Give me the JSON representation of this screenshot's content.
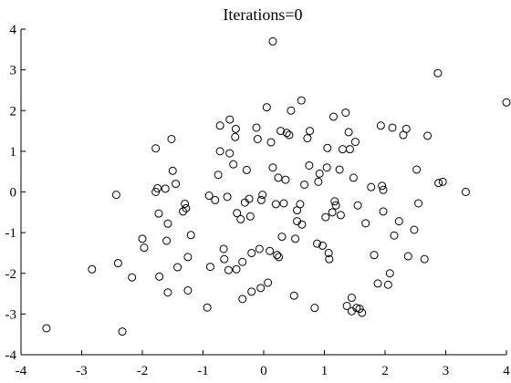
{
  "chart_data": {
    "type": "scatter",
    "title": "Iterations=0",
    "xlabel": "",
    "ylabel": "",
    "xlim": [
      -4,
      4
    ],
    "ylim": [
      -4,
      4
    ],
    "xticks": [
      -4,
      -3,
      -2,
      -1,
      0,
      1,
      2,
      3,
      4
    ],
    "yticks": [
      -4,
      -3,
      -2,
      -1,
      0,
      1,
      2,
      3,
      4
    ],
    "xtick_labels": [
      "-4",
      "-3",
      "-2",
      "-1",
      "0",
      "1",
      "2",
      "3",
      "4"
    ],
    "ytick_labels": [
      "-4",
      "-3",
      "-2",
      "-1",
      "0",
      "1",
      "2",
      "3",
      "4"
    ],
    "grid": false,
    "marker": "open-circle",
    "color": "#000000",
    "points": [
      [
        -3.58,
        -3.35
      ],
      [
        -2.33,
        -3.43
      ],
      [
        -2.83,
        -1.9
      ],
      [
        -2.4,
        -1.75
      ],
      [
        -2.43,
        -0.07
      ],
      [
        -2.17,
        -2.1
      ],
      [
        -2.0,
        -1.15
      ],
      [
        -1.97,
        -1.37
      ],
      [
        -1.78,
        1.07
      ],
      [
        -1.78,
        0.0
      ],
      [
        -1.75,
        0.09
      ],
      [
        -1.73,
        -0.53
      ],
      [
        -1.72,
        -2.08
      ],
      [
        -1.62,
        0.08
      ],
      [
        -1.6,
        -1.2
      ],
      [
        -1.58,
        -0.78
      ],
      [
        -1.58,
        -2.47
      ],
      [
        -1.52,
        1.3
      ],
      [
        -1.5,
        0.52
      ],
      [
        -1.45,
        0.2
      ],
      [
        -1.42,
        -1.85
      ],
      [
        -1.33,
        -0.48
      ],
      [
        -1.3,
        -0.29
      ],
      [
        -1.28,
        -0.4
      ],
      [
        -1.25,
        -1.6
      ],
      [
        -1.25,
        -2.42
      ],
      [
        -1.2,
        -1.06
      ],
      [
        -0.93,
        -2.84
      ],
      [
        -0.9,
        -0.09
      ],
      [
        -0.88,
        -1.84
      ],
      [
        -0.8,
        -0.2
      ],
      [
        -0.75,
        0.42
      ],
      [
        -0.72,
        1.63
      ],
      [
        -0.72,
        1.0
      ],
      [
        -0.66,
        -1.4
      ],
      [
        -0.65,
        -1.65
      ],
      [
        -0.6,
        -0.12
      ],
      [
        -0.58,
        -1.92
      ],
      [
        -0.56,
        0.95
      ],
      [
        -0.56,
        1.78
      ],
      [
        -0.5,
        0.68
      ],
      [
        -0.47,
        1.35
      ],
      [
        -0.46,
        1.55
      ],
      [
        -0.45,
        -1.9
      ],
      [
        -0.44,
        -0.52
      ],
      [
        -0.38,
        -0.67
      ],
      [
        -0.35,
        -1.72
      ],
      [
        -0.35,
        -2.63
      ],
      [
        -0.31,
        -0.26
      ],
      [
        -0.28,
        0.54
      ],
      [
        -0.24,
        -0.17
      ],
      [
        -0.22,
        -0.6
      ],
      [
        -0.2,
        -2.45
      ],
      [
        -0.2,
        -1.5
      ],
      [
        -0.12,
        1.58
      ],
      [
        -0.1,
        1.3
      ],
      [
        -0.07,
        -1.4
      ],
      [
        -0.05,
        -2.36
      ],
      [
        -0.04,
        -0.2
      ],
      [
        -0.02,
        -0.07
      ],
      [
        0.05,
        2.08
      ],
      [
        0.07,
        -2.23
      ],
      [
        0.1,
        -1.45
      ],
      [
        0.12,
        1.22
      ],
      [
        0.15,
        3.7
      ],
      [
        0.15,
        0.6
      ],
      [
        0.2,
        -0.3
      ],
      [
        0.22,
        -1.55
      ],
      [
        0.24,
        0.35
      ],
      [
        0.25,
        -1.6
      ],
      [
        0.28,
        1.5
      ],
      [
        0.3,
        -1.1
      ],
      [
        0.33,
        -0.28
      ],
      [
        0.36,
        0.3
      ],
      [
        0.38,
        1.45
      ],
      [
        0.42,
        1.4
      ],
      [
        0.45,
        2.0
      ],
      [
        0.5,
        -2.55
      ],
      [
        0.52,
        -1.15
      ],
      [
        0.55,
        -0.45
      ],
      [
        0.55,
        -0.72
      ],
      [
        0.6,
        -0.3
      ],
      [
        0.62,
        2.25
      ],
      [
        0.63,
        -0.8
      ],
      [
        0.67,
        0.18
      ],
      [
        0.72,
        1.32
      ],
      [
        0.75,
        0.65
      ],
      [
        0.76,
        1.5
      ],
      [
        0.84,
        -2.85
      ],
      [
        0.88,
        -1.27
      ],
      [
        0.9,
        0.25
      ],
      [
        0.92,
        0.45
      ],
      [
        0.97,
        -1.32
      ],
      [
        1.02,
        -0.62
      ],
      [
        1.04,
        0.6
      ],
      [
        1.05,
        1.08
      ],
      [
        1.07,
        -1.5
      ],
      [
        1.08,
        -1.65
      ],
      [
        1.13,
        -0.5
      ],
      [
        1.15,
        1.85
      ],
      [
        1.17,
        -0.23
      ],
      [
        1.19,
        -0.33
      ],
      [
        1.25,
        0.55
      ],
      [
        1.27,
        -0.57
      ],
      [
        1.3,
        1.05
      ],
      [
        1.35,
        1.95
      ],
      [
        1.37,
        -2.8
      ],
      [
        1.4,
        1.47
      ],
      [
        1.42,
        1.05
      ],
      [
        1.45,
        -2.93
      ],
      [
        1.45,
        -2.6
      ],
      [
        1.48,
        0.35
      ],
      [
        1.51,
        1.23
      ],
      [
        1.53,
        -2.85
      ],
      [
        1.55,
        -0.33
      ],
      [
        1.58,
        -2.87
      ],
      [
        1.62,
        -2.97
      ],
      [
        1.68,
        -0.77
      ],
      [
        1.77,
        0.12
      ],
      [
        1.82,
        -1.55
      ],
      [
        1.88,
        -2.25
      ],
      [
        1.93,
        1.63
      ],
      [
        1.95,
        0.15
      ],
      [
        1.97,
        0.05
      ],
      [
        1.97,
        -0.48
      ],
      [
        2.05,
        -2.28
      ],
      [
        2.08,
        -2.0
      ],
      [
        2.12,
        1.58
      ],
      [
        2.15,
        -1.07
      ],
      [
        2.23,
        -0.72
      ],
      [
        2.3,
        1.4
      ],
      [
        2.35,
        1.55
      ],
      [
        2.38,
        -1.58
      ],
      [
        2.48,
        -0.93
      ],
      [
        2.52,
        0.55
      ],
      [
        2.55,
        -0.28
      ],
      [
        2.65,
        -1.65
      ],
      [
        2.7,
        1.38
      ],
      [
        2.87,
        2.92
      ],
      [
        2.88,
        0.22
      ],
      [
        2.95,
        0.25
      ],
      [
        3.33,
        0.0
      ],
      [
        4.0,
        2.2
      ]
    ]
  }
}
